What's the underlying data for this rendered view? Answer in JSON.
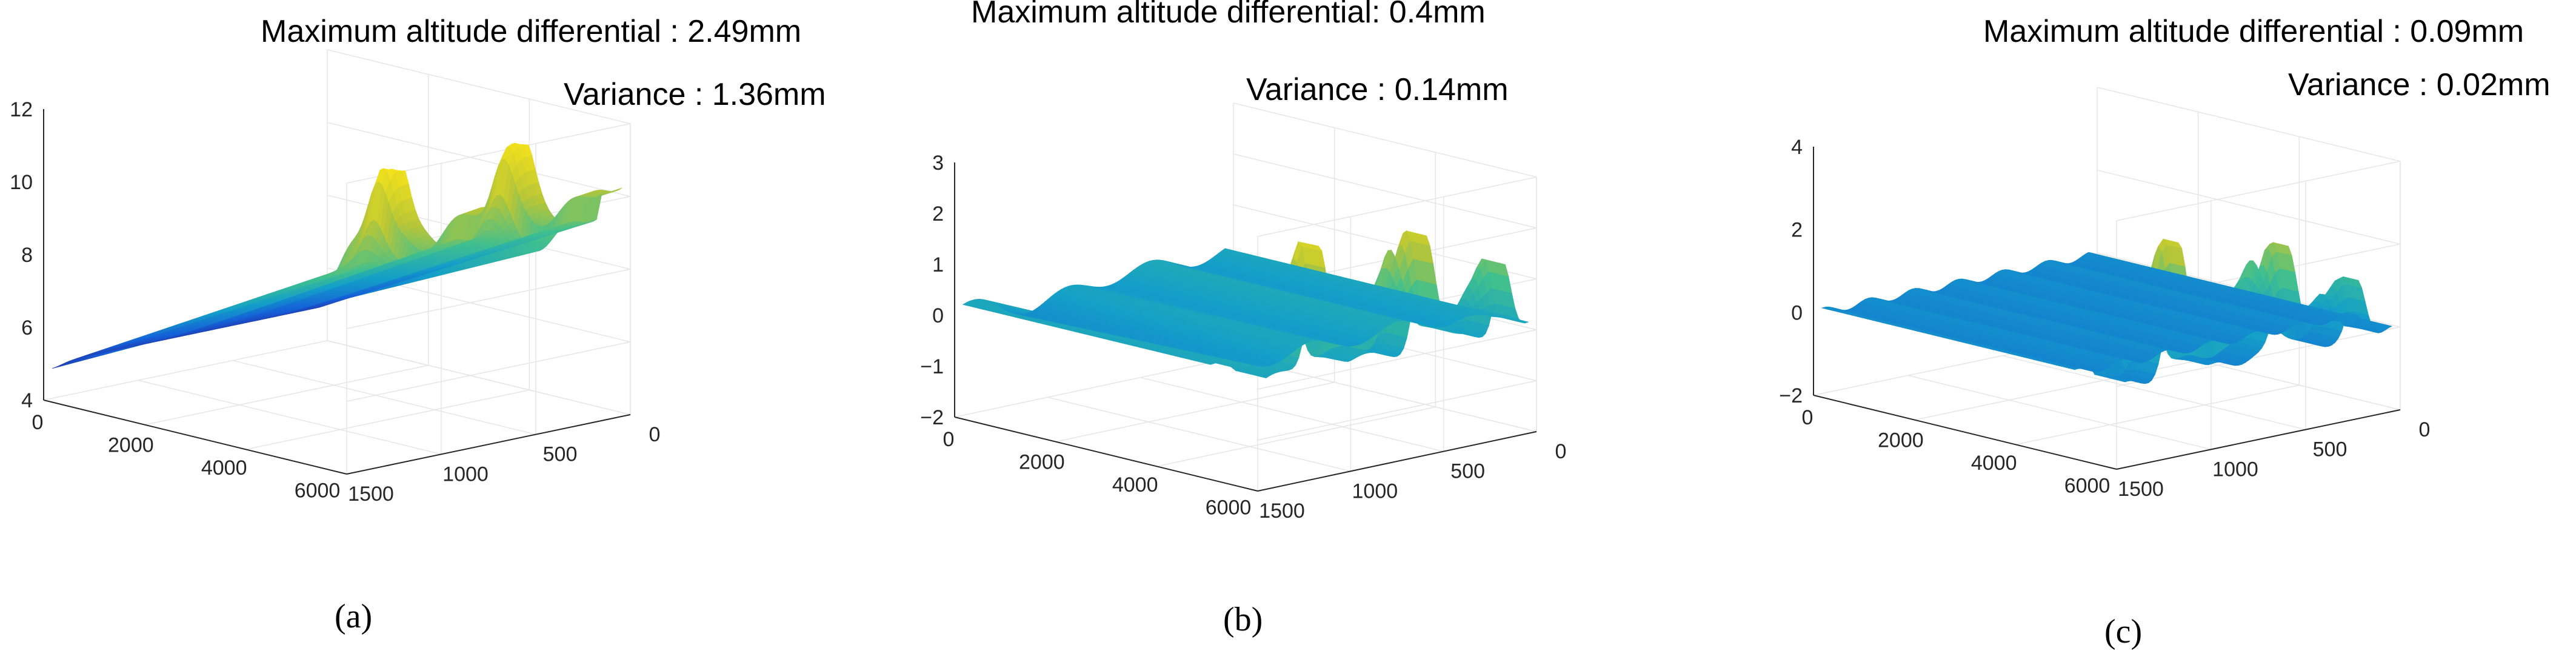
{
  "chart_data": [
    {
      "type": "surface",
      "caption": "(a)",
      "annotations": [
        "Maximum altitude differential : 2.49mm",
        "Variance : 1.36mm"
      ],
      "x_ticks": [
        "0",
        "2000",
        "4000",
        "6000"
      ],
      "y_ticks": [
        "1500",
        "1000",
        "500",
        "0"
      ],
      "z_ticks": [
        "4",
        "6",
        "8",
        "10",
        "12"
      ],
      "xlim": [
        0,
        6500
      ],
      "ylim": [
        0,
        1500
      ],
      "zlim": [
        4,
        12
      ],
      "colormap": [
        "#2b1f8f",
        "#1560d8",
        "#14a0c8",
        "#40bf8f",
        "#b8c636",
        "#f5e21b"
      ]
    },
    {
      "type": "surface",
      "caption": "(b)",
      "annotations": [
        "Maximum altitude differential: 0.4mm",
        "Variance : 0.14mm"
      ],
      "x_ticks": [
        "0",
        "2000",
        "4000",
        "6000"
      ],
      "y_ticks": [
        "1500",
        "1000",
        "500",
        "0"
      ],
      "z_ticks": [
        "−2",
        "−1",
        "0",
        "1",
        "2",
        "3"
      ],
      "xlim": [
        0,
        6500
      ],
      "ylim": [
        0,
        1500
      ],
      "zlim": [
        -2,
        3
      ],
      "colormap": [
        "#2b1f8f",
        "#1560d8",
        "#14a0c8",
        "#40bf8f",
        "#b8c636",
        "#f5e21b"
      ]
    },
    {
      "type": "surface",
      "caption": "(c)",
      "annotations": [
        "Maximum altitude differential : 0.09mm",
        "Variance : 0.02mm"
      ],
      "x_ticks": [
        "0",
        "2000",
        "4000",
        "6000"
      ],
      "y_ticks": [
        "1500",
        "1000",
        "500",
        "0"
      ],
      "z_ticks": [
        "−2",
        "0",
        "2",
        "4"
      ],
      "xlim": [
        0,
        6500
      ],
      "ylim": [
        0,
        1500
      ],
      "zlim": [
        -2,
        4
      ],
      "colormap": [
        "#2b1f8f",
        "#1560d8",
        "#14a0c8",
        "#40bf8f",
        "#b8c636",
        "#f5e21b"
      ]
    }
  ]
}
